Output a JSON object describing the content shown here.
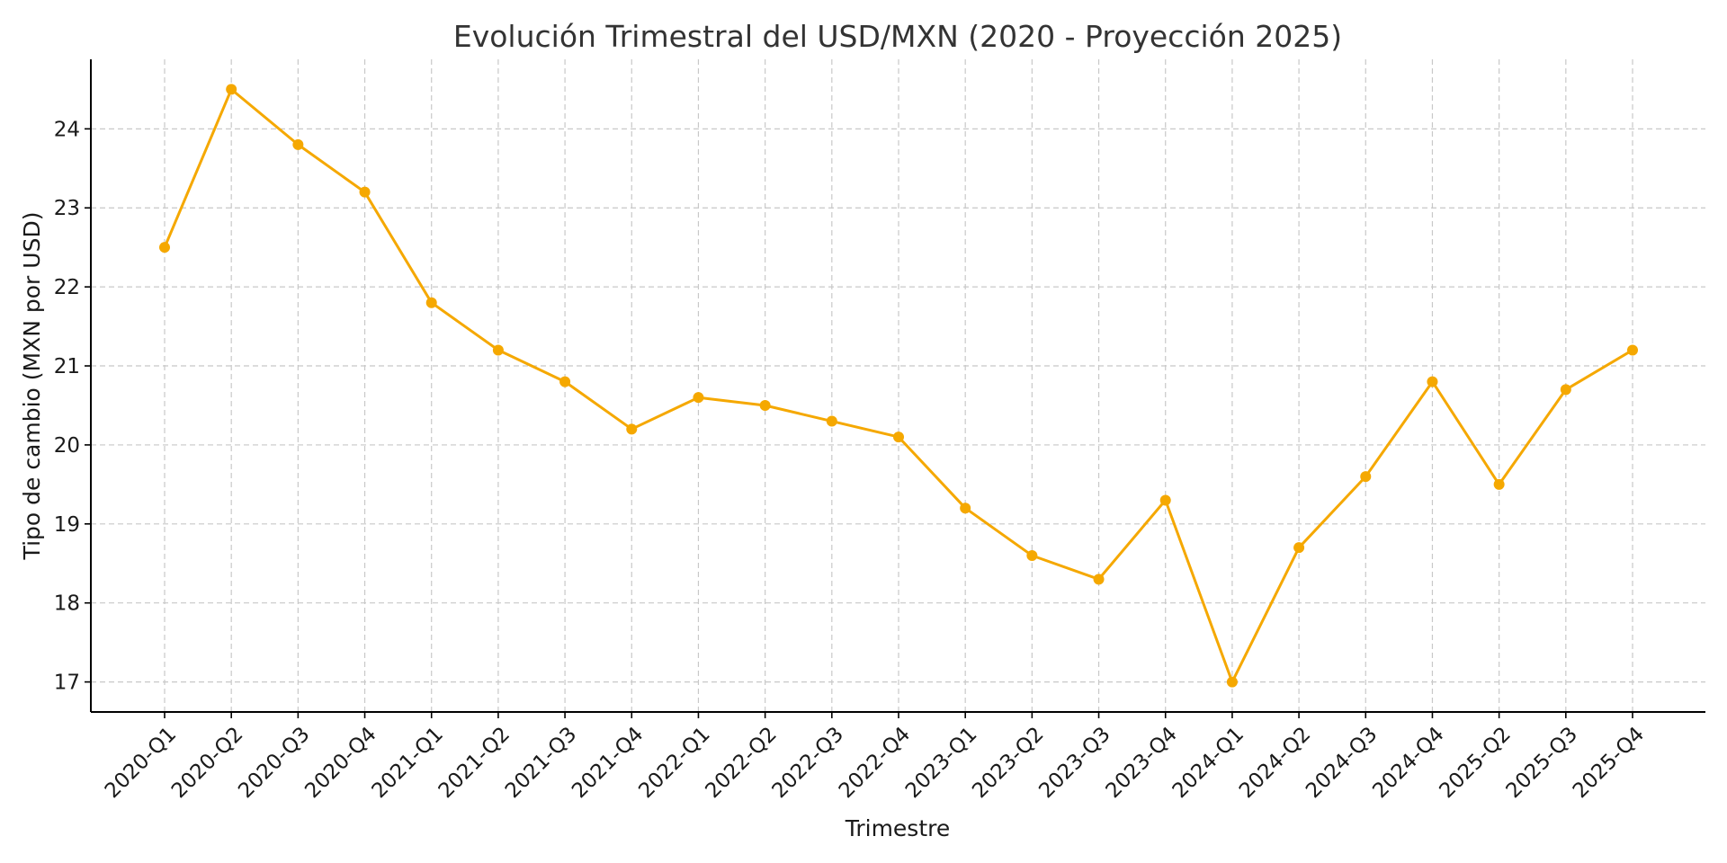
{
  "chart_data": {
    "type": "line",
    "title": "Evolución Trimestral del USD/MXN (2020 - Proyección 2025)",
    "xlabel": "Trimestre",
    "ylabel": "Tipo de cambio (MXN por USD)",
    "categories": [
      "2020-Q1",
      "2020-Q2",
      "2020-Q3",
      "2020-Q4",
      "2021-Q1",
      "2021-Q2",
      "2021-Q3",
      "2021-Q4",
      "2022-Q1",
      "2022-Q2",
      "2022-Q3",
      "2022-Q4",
      "2023-Q1",
      "2023-Q2",
      "2023-Q3",
      "2023-Q4",
      "2024-Q1",
      "2024-Q2",
      "2024-Q3",
      "2024-Q4",
      "2025-Q2",
      "2025-Q3",
      "2025-Q4"
    ],
    "series": [
      {
        "values": [
          22.5,
          24.5,
          23.8,
          23.2,
          21.8,
          21.2,
          20.8,
          20.2,
          20.6,
          20.5,
          20.3,
          20.1,
          19.2,
          18.6,
          18.3,
          19.3,
          17.0,
          18.7,
          19.6,
          20.8,
          19.5,
          20.7,
          21.2
        ],
        "color": "#f5a800"
      }
    ],
    "yticks": [
      17,
      18,
      19,
      20,
      21,
      22,
      23,
      24
    ],
    "ylim": [
      16.62,
      24.88
    ],
    "grid": true,
    "legend": "none"
  }
}
